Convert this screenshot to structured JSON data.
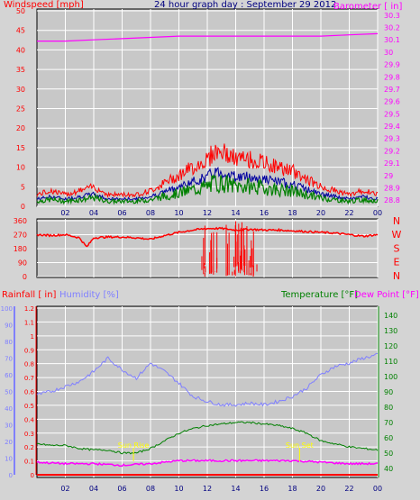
{
  "title": "24 hour graph day : September 29 2012",
  "colors": {
    "background": "#d4d4d4",
    "plot": "#c8c8c8",
    "grid": "#ffffff",
    "wind": "#ff0000",
    "gust_mid": "#0000a0",
    "gust_low": "#008000",
    "baro": "#ff00ff",
    "direction": "#ff0000",
    "rain": "#ff0000",
    "humidity": "#8080ff",
    "temperature": "#008000",
    "dewpoint": "#ff00ff",
    "sun": "#ffff00"
  },
  "x_ticks": [
    "02",
    "04",
    "06",
    "08",
    "10",
    "12",
    "14",
    "16",
    "18",
    "20",
    "22",
    "00"
  ],
  "panels": {
    "wind": {
      "left_label": "Windspeed [mph]",
      "right_label": "Barometer [ in]",
      "left_ticks": [
        "50",
        "45",
        "40",
        "35",
        "30",
        "25",
        "20",
        "15",
        "10",
        "5",
        "0"
      ],
      "right_ticks": [
        "30.3",
        "30.2",
        "30.1",
        "30",
        "29.9",
        "29.8",
        "29.7",
        "29.6",
        "29.5",
        "29.4",
        "29.3",
        "29.2",
        "29.1",
        "29",
        "28.9",
        "28.8"
      ]
    },
    "direction": {
      "left_ticks": [
        "360",
        "270",
        "180",
        "90",
        "0"
      ],
      "right_ticks": [
        "N",
        "W",
        "S",
        "E",
        "N"
      ]
    },
    "lower": {
      "rain_label": "Rainfall [ in]",
      "humidity_label": "Humidity [%]",
      "temp_label": "Temperature [°F]",
      "dew_label": "Dew Point [°F]",
      "rain_ticks": [
        "1.2",
        "1.1",
        "1",
        "0.9",
        "0.8",
        "0.7",
        "0.6",
        "0.5",
        "0.4",
        "0.3",
        "0.2",
        "0.1",
        "0"
      ],
      "humidity_ticks": [
        "100",
        "90",
        "80",
        "70",
        "60",
        "50",
        "40",
        "30",
        "20",
        "10",
        "0"
      ],
      "temp_ticks": [
        "140",
        "130",
        "120",
        "110",
        "100",
        "90",
        "80",
        "70",
        "60",
        "50",
        "40"
      ],
      "sunrise_label": "Sun Rise",
      "sunset_label": "Sun Set"
    }
  },
  "chart_data": [
    {
      "type": "line",
      "title": "24 hour graph day : September 29 2012",
      "x_unit": "hour",
      "xlim": [
        0,
        24
      ],
      "ylabel": "Windspeed [mph]",
      "ylim": [
        0,
        50
      ],
      "y2label": "Barometer [ in]",
      "y2lim": [
        28.75,
        30.35
      ],
      "series": [
        {
          "name": "Windspeed [mph]",
          "axis": "left",
          "kind": "gust",
          "x": [
            0,
            1,
            2,
            3,
            4,
            5,
            6,
            7,
            8,
            9,
            10,
            11,
            12,
            12.5,
            13,
            13.5,
            14,
            15,
            16,
            17,
            18,
            19,
            20,
            21,
            22,
            23,
            24
          ],
          "y": [
            3,
            4,
            3,
            4,
            5,
            3,
            3,
            3,
            4,
            6,
            8,
            10,
            12,
            14,
            14,
            13,
            12,
            12,
            11,
            10,
            9,
            7,
            5,
            4,
            3,
            4,
            3
          ]
        },
        {
          "name": "Barometer [ in]",
          "axis": "right",
          "x": [
            0,
            2,
            4,
            6,
            8,
            10,
            12,
            14,
            16,
            18,
            20,
            22,
            24
          ],
          "y": [
            30.09,
            30.09,
            30.1,
            30.11,
            30.12,
            30.13,
            30.13,
            30.13,
            30.13,
            30.13,
            30.13,
            30.14,
            30.15
          ]
        }
      ]
    },
    {
      "type": "line",
      "ylabel": "",
      "ylim": [
        0,
        360
      ],
      "xlim": [
        0,
        24
      ],
      "series": [
        {
          "name": "Wind direction",
          "x": [
            0,
            1,
            2,
            3,
            3.5,
            4,
            5,
            6,
            7,
            8,
            9,
            10,
            11,
            12,
            13,
            14,
            15,
            16,
            17,
            18,
            19,
            20,
            21,
            22,
            23,
            24
          ],
          "y": [
            270,
            265,
            270,
            250,
            190,
            250,
            255,
            255,
            250,
            240,
            265,
            285,
            300,
            310,
            310,
            300,
            305,
            300,
            300,
            295,
            290,
            285,
            280,
            270,
            260,
            270
          ]
        }
      ]
    },
    {
      "type": "line",
      "rain_label": "Rainfall [ in]",
      "humidity_label": "Humidity [%]",
      "temp_label": "Temperature [°F]",
      "dew_label": "Dew Point [°F]",
      "xlim": [
        0,
        24
      ],
      "rain_lim": [
        0,
        1.2
      ],
      "humidity_lim": [
        0,
        100
      ],
      "temp_lim": [
        34,
        146
      ],
      "series": [
        {
          "name": "Humidity [%]",
          "axis": "humidity",
          "x": [
            0,
            1,
            2,
            3,
            4,
            5,
            6,
            7,
            8,
            9,
            10,
            11,
            12,
            13,
            14,
            15,
            16,
            17,
            18,
            19,
            20,
            21,
            22,
            23,
            24
          ],
          "y": [
            48,
            50,
            53,
            56,
            62,
            70,
            63,
            58,
            67,
            62,
            55,
            47,
            44,
            42,
            42,
            43,
            42,
            44,
            47,
            52,
            60,
            65,
            67,
            70,
            72
          ]
        },
        {
          "name": "Temperature [°F]",
          "axis": "temp",
          "x": [
            0,
            1,
            2,
            3,
            4,
            5,
            6,
            7,
            8,
            9,
            10,
            11,
            12,
            13,
            14,
            15,
            16,
            17,
            18,
            19,
            20,
            21,
            22,
            23,
            24
          ],
          "y": [
            56,
            55,
            55,
            53,
            52,
            52,
            50,
            50,
            53,
            58,
            63,
            66,
            68,
            69,
            70,
            70,
            69,
            68,
            66,
            63,
            58,
            56,
            54,
            53,
            52
          ]
        },
        {
          "name": "Dew Point [°F]",
          "axis": "temp",
          "x": [
            0,
            2,
            4,
            6,
            8,
            10,
            12,
            14,
            16,
            18,
            20,
            22,
            24
          ],
          "y": [
            44,
            43,
            43,
            42,
            43,
            45,
            45,
            45,
            45,
            45,
            44,
            43,
            43
          ]
        },
        {
          "name": "Rainfall [ in]",
          "axis": "rain",
          "x": [
            0,
            24
          ],
          "y": [
            0,
            0
          ]
        }
      ],
      "annotations": [
        {
          "text": "Sun Rise",
          "x": 6.8
        },
        {
          "text": "Sun Set",
          "x": 18.5
        }
      ]
    }
  ]
}
